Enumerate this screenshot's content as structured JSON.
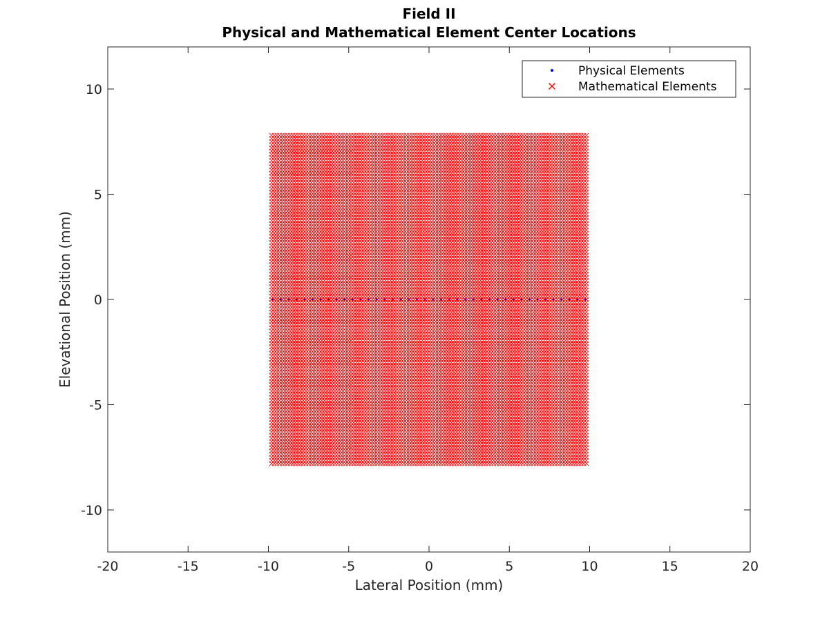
{
  "chart_data": {
    "type": "scatter",
    "title": "Field II",
    "subtitle": "Physical and Mathematical Element Center Locations",
    "xlabel": "Lateral Position (mm)",
    "ylabel": "Elevational Position (mm)",
    "xlim": [
      -20,
      20
    ],
    "ylim": [
      -12,
      12
    ],
    "xticks": [
      -20,
      -15,
      -10,
      -5,
      0,
      5,
      10,
      15,
      20
    ],
    "yticks": [
      -10,
      -5,
      0,
      5,
      10
    ],
    "xtick_labels": [
      "-20",
      "-15",
      "-10",
      "-5",
      "0",
      "5",
      "10",
      "15",
      "20"
    ],
    "ytick_labels": [
      "-10",
      "-5",
      "0",
      "5",
      "10"
    ],
    "grid": false,
    "box": true,
    "legend_position": "top-right",
    "series": [
      {
        "name": "Physical Elements",
        "marker": "dot",
        "color": "#0000ff",
        "grid_points": {
          "x_range": [
            -9.75,
            9.75
          ],
          "x_count": 40,
          "y": [
            0
          ]
        }
      },
      {
        "name": "Mathematical Elements",
        "marker": "x",
        "color": "#ff0000",
        "grid_points": {
          "x_range": [
            -9.8,
            9.8
          ],
          "x_count": 120,
          "y_range": [
            -7.8,
            7.8
          ],
          "y_count": 105
        }
      }
    ]
  }
}
